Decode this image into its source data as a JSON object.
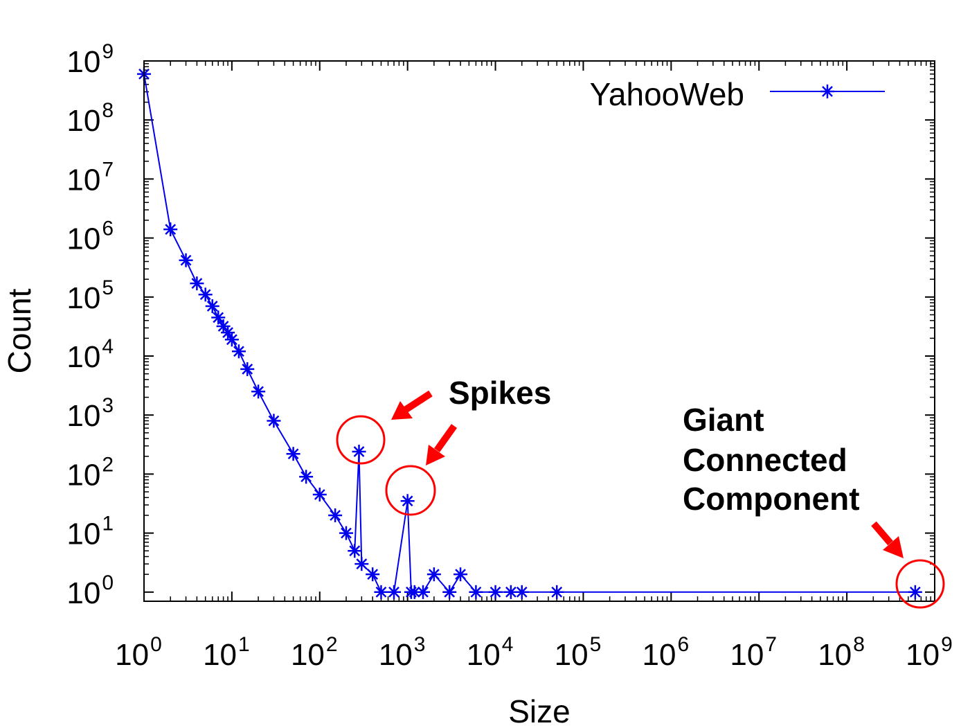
{
  "chart_data": {
    "type": "scatter",
    "title": "",
    "xlabel": "Size",
    "ylabel": "Count",
    "xscale": "log",
    "yscale": "log",
    "xlim": [
      1,
      1000000000
    ],
    "ylim": [
      0.7,
      1000000000
    ],
    "x_tick_exponents": [
      "0",
      "1",
      "2",
      "3",
      "4",
      "5",
      "6",
      "7",
      "8",
      "9"
    ],
    "y_tick_exponents": [
      "0",
      "1",
      "2",
      "3",
      "4",
      "5",
      "6",
      "7",
      "8",
      "9"
    ],
    "tick_base": "10",
    "legend": {
      "label": "YahooWeb",
      "position": "top-right"
    },
    "series": [
      {
        "name": "YahooWeb",
        "color": "#0000ee",
        "marker": "asterisk",
        "x": [
          1,
          2,
          3,
          4,
          5,
          6,
          7,
          8,
          9,
          10,
          12,
          15,
          20,
          30,
          50,
          70,
          100,
          150,
          200,
          250,
          280,
          300,
          400,
          500,
          700,
          1000,
          1100,
          1200,
          1500,
          2000,
          3000,
          4000,
          6000,
          10000,
          15000,
          20000,
          50000,
          600000000
        ],
        "y": [
          600000000,
          1400000,
          420000,
          170000,
          110000,
          70000,
          45000,
          32000,
          25000,
          19000,
          12000,
          6000,
          2500,
          800,
          220,
          90,
          45,
          20,
          10,
          5,
          240,
          3,
          2,
          1,
          1,
          35,
          1,
          1,
          1,
          2,
          1,
          2,
          1,
          1,
          1,
          1,
          1,
          1
        ]
      }
    ],
    "annotations": [
      {
        "text": "Spikes",
        "targets": [
          {
            "x": 280,
            "y": 240
          },
          {
            "x": 1100,
            "y": 35
          }
        ]
      },
      {
        "text_lines": [
          "Giant",
          "Connected",
          "Component"
        ],
        "target": {
          "x": 600000000,
          "y": 1
        }
      }
    ],
    "annotation_color": "#ff0000"
  }
}
